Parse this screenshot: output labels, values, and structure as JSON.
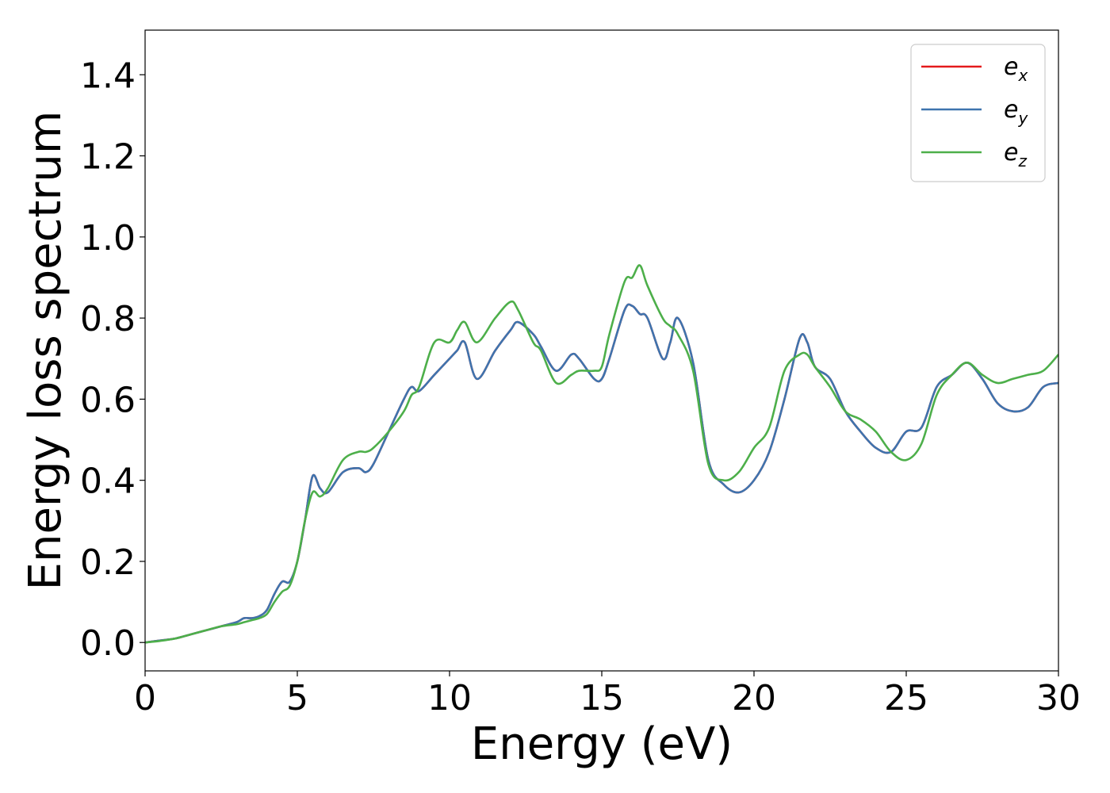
{
  "chart_data": {
    "type": "line",
    "xlabel": "Energy (eV)",
    "ylabel": "Energy loss spectrum",
    "xlim": [
      0,
      30
    ],
    "ylim": [
      -0.07,
      1.51
    ],
    "xticks": [
      0,
      5,
      10,
      15,
      20,
      25,
      30
    ],
    "xtick_labels": [
      "0",
      "5",
      "10",
      "15",
      "20",
      "25",
      "30"
    ],
    "yticks": [
      0.0,
      0.2,
      0.4,
      0.6,
      0.8,
      1.0,
      1.2,
      1.4
    ],
    "ytick_labels": [
      "0.0",
      "0.2",
      "0.4",
      "0.6",
      "0.8",
      "1.0",
      "1.2",
      "1.4"
    ],
    "grid": false,
    "legend": "top-right",
    "x": [
      0,
      0.5,
      1,
      1.5,
      2,
      2.5,
      3,
      3.25,
      3.5,
      3.75,
      4,
      4.25,
      4.5,
      4.75,
      5,
      5.25,
      5.5,
      5.75,
      6,
      6.5,
      7,
      7.25,
      7.5,
      8,
      8.5,
      8.75,
      9,
      9.5,
      10,
      10.25,
      10.5,
      10.9,
      11.5,
      12,
      12.25,
      12.75,
      13,
      13.5,
      14,
      14.25,
      14.75,
      15,
      15.25,
      15.75,
      16,
      16.25,
      16.5,
      17,
      17.25,
      17.5,
      18,
      18.5,
      19,
      19.5,
      20,
      20.5,
      21,
      21.5,
      21.75,
      22,
      22.5,
      23,
      23.5,
      24,
      24.5,
      25,
      25.5,
      26,
      26.5,
      27,
      27.5,
      28,
      28.5,
      29,
      29.5,
      30
    ],
    "series": [
      {
        "name": "x",
        "color": "#e41a1c",
        "values": [
          0,
          0.005,
          0.01,
          0.02,
          0.03,
          0.04,
          0.05,
          0.06,
          0.06,
          0.065,
          0.08,
          0.12,
          0.15,
          0.15,
          0.2,
          0.3,
          0.41,
          0.38,
          0.37,
          0.42,
          0.43,
          0.42,
          0.44,
          0.52,
          0.6,
          0.63,
          0.62,
          0.66,
          0.7,
          0.72,
          0.74,
          0.65,
          0.72,
          0.77,
          0.79,
          0.76,
          0.73,
          0.67,
          0.71,
          0.7,
          0.65,
          0.65,
          0.7,
          0.82,
          0.83,
          0.81,
          0.8,
          0.7,
          0.74,
          0.8,
          0.69,
          0.45,
          0.39,
          0.37,
          0.4,
          0.47,
          0.6,
          0.75,
          0.74,
          0.68,
          0.65,
          0.57,
          0.52,
          0.48,
          0.47,
          0.52,
          0.53,
          0.63,
          0.66,
          0.69,
          0.65,
          0.59,
          0.57,
          0.58,
          0.63,
          0.64
        ]
      },
      {
        "name": "y",
        "color": "#3e74ae",
        "values": [
          0,
          0.005,
          0.01,
          0.02,
          0.03,
          0.04,
          0.05,
          0.06,
          0.06,
          0.065,
          0.08,
          0.12,
          0.15,
          0.15,
          0.2,
          0.3,
          0.41,
          0.38,
          0.37,
          0.42,
          0.43,
          0.42,
          0.44,
          0.52,
          0.6,
          0.63,
          0.62,
          0.66,
          0.7,
          0.72,
          0.74,
          0.65,
          0.72,
          0.77,
          0.79,
          0.76,
          0.73,
          0.67,
          0.71,
          0.7,
          0.65,
          0.65,
          0.7,
          0.82,
          0.83,
          0.81,
          0.8,
          0.7,
          0.74,
          0.8,
          0.69,
          0.45,
          0.39,
          0.37,
          0.4,
          0.47,
          0.6,
          0.75,
          0.74,
          0.68,
          0.65,
          0.57,
          0.52,
          0.48,
          0.47,
          0.52,
          0.53,
          0.63,
          0.66,
          0.69,
          0.65,
          0.59,
          0.57,
          0.58,
          0.63,
          0.64
        ]
      },
      {
        "name": "z",
        "color": "#4daf4a",
        "values": [
          0,
          0.004,
          0.01,
          0.02,
          0.03,
          0.04,
          0.045,
          0.05,
          0.055,
          0.06,
          0.07,
          0.1,
          0.125,
          0.14,
          0.2,
          0.3,
          0.37,
          0.36,
          0.38,
          0.45,
          0.47,
          0.47,
          0.48,
          0.52,
          0.57,
          0.61,
          0.63,
          0.74,
          0.74,
          0.77,
          0.79,
          0.74,
          0.8,
          0.84,
          0.82,
          0.74,
          0.72,
          0.64,
          0.66,
          0.67,
          0.67,
          0.68,
          0.76,
          0.89,
          0.9,
          0.93,
          0.88,
          0.8,
          0.78,
          0.76,
          0.67,
          0.44,
          0.4,
          0.42,
          0.48,
          0.53,
          0.67,
          0.71,
          0.71,
          0.68,
          0.63,
          0.57,
          0.55,
          0.52,
          0.47,
          0.45,
          0.49,
          0.61,
          0.66,
          0.69,
          0.66,
          0.64,
          0.65,
          0.66,
          0.67,
          0.71
        ]
      }
    ]
  },
  "legend": {
    "items": [
      {
        "base": "e",
        "sub": "x",
        "color": "#e41a1c"
      },
      {
        "base": "e",
        "sub": "y",
        "color": "#3e74ae"
      },
      {
        "base": "e",
        "sub": "z",
        "color": "#4daf4a"
      }
    ]
  }
}
